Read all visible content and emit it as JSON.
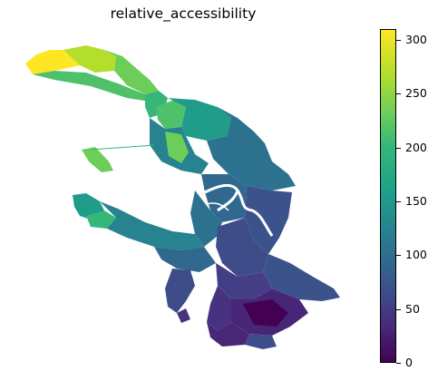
{
  "title": "relative_accessibility",
  "colorbar": {
    "min": 0,
    "max": 310,
    "ticks": [
      {
        "label": "0",
        "value": 0
      },
      {
        "label": "50",
        "value": 50
      },
      {
        "label": "100",
        "value": 100
      },
      {
        "label": "150",
        "value": 150
      },
      {
        "label": "200",
        "value": 200
      },
      {
        "label": "250",
        "value": 250
      },
      {
        "label": "300",
        "value": 300
      }
    ],
    "colors": [
      "#440154",
      "#482777",
      "#3f4a8a",
      "#31688e",
      "#26838f",
      "#1f9d8a",
      "#35b779",
      "#6cce59",
      "#b4de2c",
      "#fde725"
    ]
  },
  "map": {
    "water_color": "#ffffff"
  }
}
